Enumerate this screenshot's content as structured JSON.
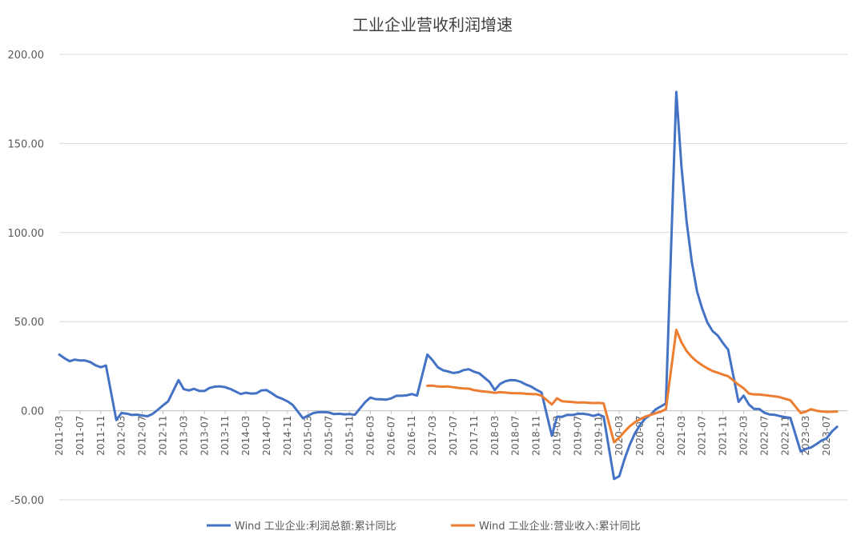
{
  "chart_data": {
    "type": "line",
    "title": "工业企业营收利润增速",
    "xlabel": "",
    "ylabel": "",
    "ylim": [
      -50,
      200
    ],
    "yticks": [
      "200.00",
      "150.00",
      "100.00",
      "50.00",
      "0.00",
      "-50.00"
    ],
    "ytick_values": [
      200,
      150,
      100,
      50,
      0,
      -50
    ],
    "grid": "horizontal",
    "legend_position": "bottom",
    "x_tick_labels": [
      "2011-03",
      "2011-07",
      "2011-11",
      "2012-03",
      "2012-07",
      "2012-11",
      "2013-03",
      "2013-07",
      "2013-11",
      "2014-03",
      "2014-07",
      "2014-11",
      "2015-03",
      "2015-07",
      "2015-11",
      "2016-03",
      "2016-07",
      "2016-11",
      "2017-03",
      "2017-07",
      "2017-11",
      "2018-03",
      "2018-07",
      "2018-11",
      "2019-03",
      "2019-07",
      "2019-11",
      "2020-03",
      "2020-07",
      "2020-11",
      "2021-03",
      "2021-07",
      "2021-11",
      "2022-03",
      "2022-07",
      "2022-11",
      "2023-03",
      "2023-07"
    ],
    "x_start": "2011-03",
    "series": [
      {
        "name": "Wind 工业企业:利润总额:累计同比",
        "color": "#4472C4",
        "points": [
          [
            "2011-03",
            31.5
          ],
          [
            "2011-04",
            29.5
          ],
          [
            "2011-05",
            27.8
          ],
          [
            "2011-06",
            28.7
          ],
          [
            "2011-07",
            28.2
          ],
          [
            "2011-08",
            28.2
          ],
          [
            "2011-09",
            27.3
          ],
          [
            "2011-10",
            25.5
          ],
          [
            "2011-11",
            24.4
          ],
          [
            "2011-12",
            25.4
          ],
          [
            "2012-02",
            -5.2
          ],
          [
            "2012-03",
            -1.3
          ],
          [
            "2012-04",
            -1.6
          ],
          [
            "2012-05",
            -2.4
          ],
          [
            "2012-06",
            -2.2
          ],
          [
            "2012-07",
            -2.7
          ],
          [
            "2012-08",
            -3.1
          ],
          [
            "2012-09",
            -1.8
          ],
          [
            "2012-10",
            0.5
          ],
          [
            "2012-11",
            3.0
          ],
          [
            "2012-12",
            5.3
          ],
          [
            "2013-02",
            17.2
          ],
          [
            "2013-03",
            12.1
          ],
          [
            "2013-04",
            11.4
          ],
          [
            "2013-05",
            12.3
          ],
          [
            "2013-06",
            11.1
          ],
          [
            "2013-07",
            11.1
          ],
          [
            "2013-08",
            12.8
          ],
          [
            "2013-09",
            13.5
          ],
          [
            "2013-10",
            13.7
          ],
          [
            "2013-11",
            13.2
          ],
          [
            "2013-12",
            12.2
          ],
          [
            "2014-02",
            9.4
          ],
          [
            "2014-03",
            10.1
          ],
          [
            "2014-04",
            9.6
          ],
          [
            "2014-05",
            9.8
          ],
          [
            "2014-06",
            11.4
          ],
          [
            "2014-07",
            11.6
          ],
          [
            "2014-08",
            9.8
          ],
          [
            "2014-09",
            7.8
          ],
          [
            "2014-10",
            6.7
          ],
          [
            "2014-11",
            5.3
          ],
          [
            "2014-12",
            3.3
          ],
          [
            "2015-02",
            -4.2
          ],
          [
            "2015-03",
            -2.7
          ],
          [
            "2015-04",
            -1.3
          ],
          [
            "2015-05",
            -0.8
          ],
          [
            "2015-06",
            -0.7
          ],
          [
            "2015-07",
            -1.0
          ],
          [
            "2015-08",
            -1.9
          ],
          [
            "2015-09",
            -1.7
          ],
          [
            "2015-10",
            -2.0
          ],
          [
            "2015-11",
            -1.9
          ],
          [
            "2015-12",
            -2.3
          ],
          [
            "2016-02",
            4.8
          ],
          [
            "2016-03",
            7.4
          ],
          [
            "2016-04",
            6.5
          ],
          [
            "2016-05",
            6.4
          ],
          [
            "2016-06",
            6.2
          ],
          [
            "2016-07",
            6.9
          ],
          [
            "2016-08",
            8.4
          ],
          [
            "2016-09",
            8.4
          ],
          [
            "2016-10",
            8.6
          ],
          [
            "2016-11",
            9.4
          ],
          [
            "2016-12",
            8.5
          ],
          [
            "2017-02",
            31.5
          ],
          [
            "2017-03",
            28.3
          ],
          [
            "2017-04",
            24.4
          ],
          [
            "2017-05",
            22.7
          ],
          [
            "2017-06",
            22.0
          ],
          [
            "2017-07",
            21.2
          ],
          [
            "2017-08",
            21.6
          ],
          [
            "2017-09",
            22.8
          ],
          [
            "2017-10",
            23.3
          ],
          [
            "2017-11",
            21.9
          ],
          [
            "2017-12",
            21.0
          ],
          [
            "2018-02",
            16.1
          ],
          [
            "2018-03",
            11.6
          ],
          [
            "2018-04",
            15.0
          ],
          [
            "2018-05",
            16.5
          ],
          [
            "2018-06",
            17.2
          ],
          [
            "2018-07",
            17.1
          ],
          [
            "2018-08",
            16.2
          ],
          [
            "2018-09",
            14.7
          ],
          [
            "2018-10",
            13.6
          ],
          [
            "2018-11",
            11.8
          ],
          [
            "2018-12",
            10.3
          ],
          [
            "2019-02",
            -14.0
          ],
          [
            "2019-03",
            -3.3
          ],
          [
            "2019-04",
            -3.4
          ],
          [
            "2019-05",
            -2.3
          ],
          [
            "2019-06",
            -2.4
          ],
          [
            "2019-07",
            -1.7
          ],
          [
            "2019-08",
            -1.7
          ],
          [
            "2019-09",
            -2.1
          ],
          [
            "2019-10",
            -2.9
          ],
          [
            "2019-11",
            -2.1
          ],
          [
            "2019-12",
            -3.3
          ],
          [
            "2020-02",
            -38.3
          ],
          [
            "2020-03",
            -36.7
          ],
          [
            "2020-04",
            -27.4
          ],
          [
            "2020-05",
            -19.3
          ],
          [
            "2020-06",
            -12.8
          ],
          [
            "2020-07",
            -8.1
          ],
          [
            "2020-08",
            -4.4
          ],
          [
            "2020-09",
            -2.4
          ],
          [
            "2020-10",
            0.7
          ],
          [
            "2020-11",
            2.4
          ],
          [
            "2020-12",
            4.1
          ],
          [
            "2021-02",
            178.9
          ],
          [
            "2021-03",
            137.3
          ],
          [
            "2021-04",
            106.0
          ],
          [
            "2021-05",
            83.4
          ],
          [
            "2021-06",
            66.9
          ],
          [
            "2021-07",
            57.3
          ],
          [
            "2021-08",
            49.5
          ],
          [
            "2021-09",
            44.7
          ],
          [
            "2021-10",
            42.2
          ],
          [
            "2021-11",
            38.0
          ],
          [
            "2021-12",
            34.3
          ],
          [
            "2022-02",
            5.0
          ],
          [
            "2022-03",
            8.5
          ],
          [
            "2022-04",
            3.5
          ],
          [
            "2022-05",
            1.0
          ],
          [
            "2022-06",
            1.0
          ],
          [
            "2022-07",
            -1.1
          ],
          [
            "2022-08",
            -2.1
          ],
          [
            "2022-09",
            -2.3
          ],
          [
            "2022-10",
            -3.0
          ],
          [
            "2022-11",
            -3.6
          ],
          [
            "2022-12",
            -4.0
          ],
          [
            "2023-02",
            -22.9
          ],
          [
            "2023-03",
            -21.4
          ],
          [
            "2023-04",
            -20.6
          ],
          [
            "2023-05",
            -18.8
          ],
          [
            "2023-06",
            -16.8
          ],
          [
            "2023-07",
            -15.5
          ],
          [
            "2023-08",
            -11.7
          ],
          [
            "2023-09",
            -9.0
          ]
        ]
      },
      {
        "name": "Wind 工业企业:营业收入:累计同比",
        "color": "#ED7D31",
        "points": [
          [
            "2017-02",
            14.0
          ],
          [
            "2017-03",
            14.1
          ],
          [
            "2017-04",
            13.6
          ],
          [
            "2017-05",
            13.5
          ],
          [
            "2017-06",
            13.6
          ],
          [
            "2017-07",
            13.2
          ],
          [
            "2017-08",
            12.8
          ],
          [
            "2017-09",
            12.5
          ],
          [
            "2017-10",
            12.4
          ],
          [
            "2017-11",
            11.6
          ],
          [
            "2017-12",
            11.1
          ],
          [
            "2018-02",
            10.5
          ],
          [
            "2018-03",
            10.0
          ],
          [
            "2018-04",
            10.4
          ],
          [
            "2018-05",
            10.2
          ],
          [
            "2018-06",
            9.9
          ],
          [
            "2018-07",
            9.8
          ],
          [
            "2018-08",
            9.8
          ],
          [
            "2018-09",
            9.5
          ],
          [
            "2018-10",
            9.4
          ],
          [
            "2018-11",
            9.3
          ],
          [
            "2018-12",
            8.5
          ],
          [
            "2019-02",
            3.5
          ],
          [
            "2019-03",
            7.0
          ],
          [
            "2019-04",
            5.3
          ],
          [
            "2019-05",
            5.1
          ],
          [
            "2019-06",
            4.9
          ],
          [
            "2019-07",
            4.6
          ],
          [
            "2019-08",
            4.7
          ],
          [
            "2019-09",
            4.5
          ],
          [
            "2019-10",
            4.3
          ],
          [
            "2019-11",
            4.4
          ],
          [
            "2019-12",
            4.1
          ],
          [
            "2020-02",
            -17.7
          ],
          [
            "2020-03",
            -15.1
          ],
          [
            "2020-04",
            -11.8
          ],
          [
            "2020-05",
            -8.8
          ],
          [
            "2020-06",
            -6.5
          ],
          [
            "2020-07",
            -4.8
          ],
          [
            "2020-08",
            -3.3
          ],
          [
            "2020-09",
            -2.4
          ],
          [
            "2020-10",
            -1.4
          ],
          [
            "2020-11",
            -0.5
          ],
          [
            "2020-12",
            0.8
          ],
          [
            "2021-02",
            45.4
          ],
          [
            "2021-03",
            38.4
          ],
          [
            "2021-04",
            33.5
          ],
          [
            "2021-05",
            30.1
          ],
          [
            "2021-06",
            27.5
          ],
          [
            "2021-07",
            25.6
          ],
          [
            "2021-08",
            23.8
          ],
          [
            "2021-09",
            22.3
          ],
          [
            "2021-10",
            21.3
          ],
          [
            "2021-11",
            20.3
          ],
          [
            "2021-12",
            19.4
          ],
          [
            "2022-02",
            14.6
          ],
          [
            "2022-03",
            12.6
          ],
          [
            "2022-04",
            9.7
          ],
          [
            "2022-05",
            9.1
          ],
          [
            "2022-06",
            9.1
          ],
          [
            "2022-07",
            8.8
          ],
          [
            "2022-08",
            8.4
          ],
          [
            "2022-09",
            8.1
          ],
          [
            "2022-10",
            7.6
          ],
          [
            "2022-11",
            6.7
          ],
          [
            "2022-12",
            5.9
          ],
          [
            "2023-02",
            -1.3
          ],
          [
            "2023-03",
            -0.5
          ],
          [
            "2023-04",
            0.9
          ],
          [
            "2023-05",
            0.0
          ],
          [
            "2023-06",
            -0.4
          ],
          [
            "2023-07",
            -0.6
          ],
          [
            "2023-08",
            -0.6
          ],
          [
            "2023-09",
            -0.4
          ]
        ]
      }
    ]
  }
}
